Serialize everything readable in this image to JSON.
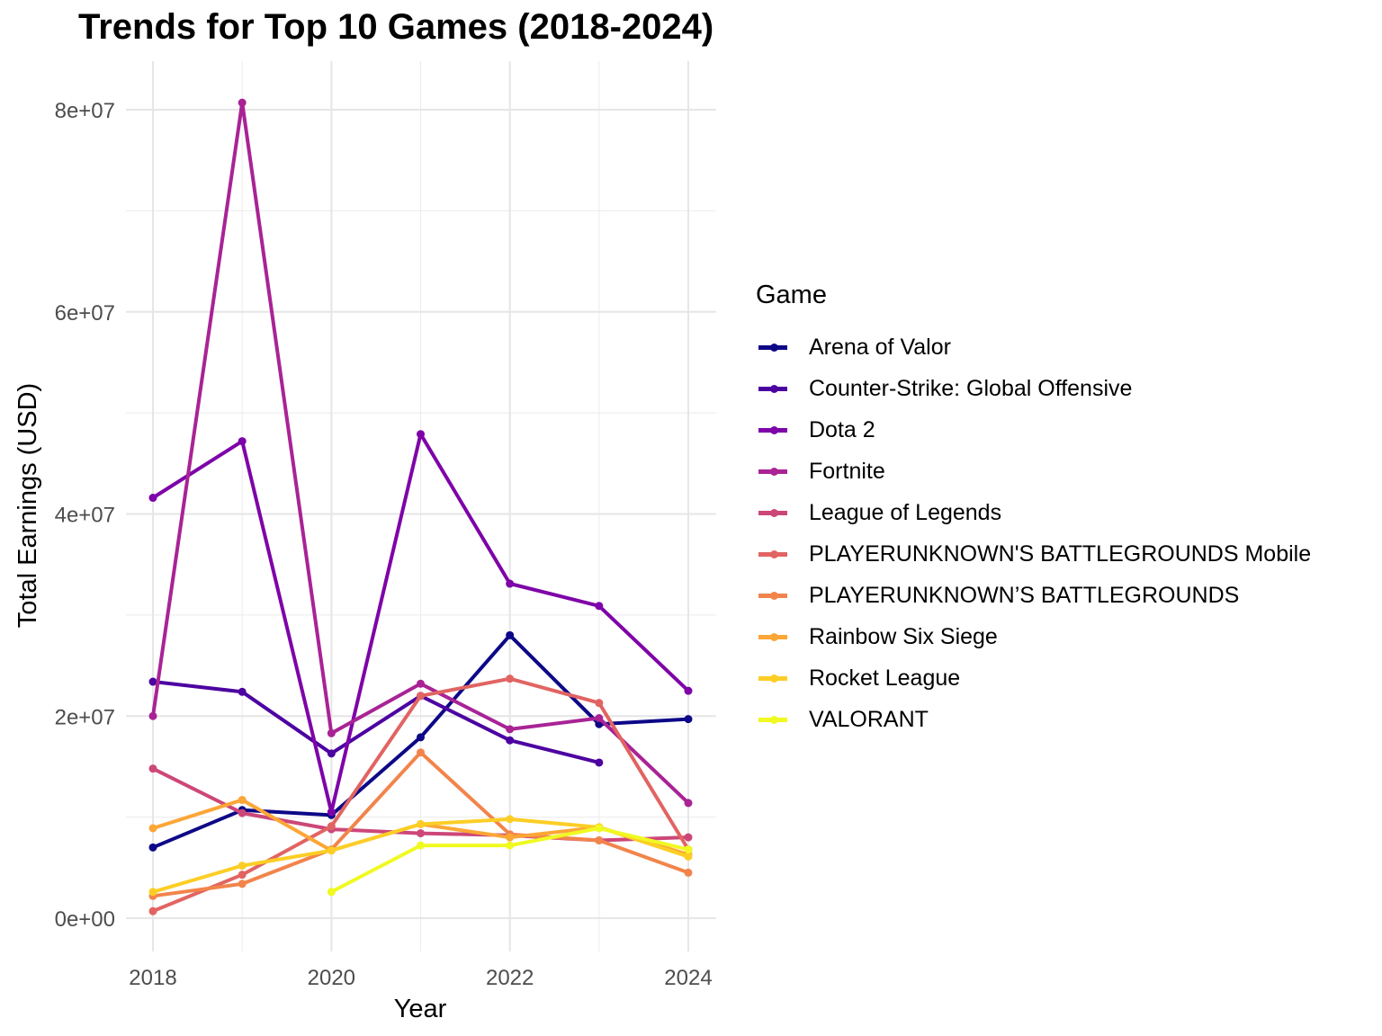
{
  "chart_data": {
    "type": "line",
    "title": "Trends for Top 10 Games (2018-2024)",
    "xlabel": "Year",
    "ylabel": "Total Earnings (USD)",
    "x_ticks": [
      "2018",
      "2020",
      "2022",
      "2024"
    ],
    "x_tick_values": [
      2018,
      2020,
      2022,
      2024
    ],
    "y_ticks": [
      "0e+00",
      "2e+07",
      "4e+07",
      "6e+07",
      "8e+07"
    ],
    "y_tick_values": [
      0,
      20000000,
      40000000,
      60000000,
      80000000
    ],
    "xlim": [
      2017.6,
      2024.3
    ],
    "ylim": [
      -3500000,
      85000000
    ],
    "grid": true,
    "legend_title": "Game",
    "legend_position": "right",
    "series": [
      {
        "name": "Arena of Valor",
        "color": "#0d0887",
        "points": [
          [
            2018,
            7000000
          ],
          [
            2019,
            10700000
          ],
          [
            2020,
            10200000
          ],
          [
            2021,
            17900000
          ],
          [
            2022,
            28000000
          ],
          [
            2023,
            19200000
          ],
          [
            2024,
            19700000
          ]
        ]
      },
      {
        "name": "Counter-Strike: Global Offensive",
        "color": "#4c02a1",
        "points": [
          [
            2018,
            23400000
          ],
          [
            2019,
            22400000
          ],
          [
            2020,
            16300000
          ],
          [
            2021,
            22000000
          ],
          [
            2022,
            17600000
          ],
          [
            2023,
            15400000
          ]
        ]
      },
      {
        "name": "Dota 2",
        "color": "#7e03a8",
        "points": [
          [
            2018,
            41600000
          ],
          [
            2019,
            47200000
          ],
          [
            2020,
            10500000
          ],
          [
            2021,
            47900000
          ],
          [
            2022,
            33100000
          ],
          [
            2023,
            30900000
          ],
          [
            2024,
            22500000
          ]
        ]
      },
      {
        "name": "Fortnite",
        "color": "#a92395",
        "points": [
          [
            2018,
            20000000
          ],
          [
            2019,
            80700000
          ],
          [
            2020,
            18300000
          ],
          [
            2021,
            23200000
          ],
          [
            2022,
            18700000
          ],
          [
            2023,
            19800000
          ],
          [
            2024,
            11400000
          ]
        ]
      },
      {
        "name": "League of Legends",
        "color": "#cc4778",
        "points": [
          [
            2018,
            14800000
          ],
          [
            2019,
            10400000
          ],
          [
            2020,
            8800000
          ],
          [
            2021,
            8400000
          ],
          [
            2022,
            8200000
          ],
          [
            2023,
            7700000
          ],
          [
            2024,
            8000000
          ]
        ]
      },
      {
        "name": "PLAYERUNKNOWN'S BATTLEGROUNDS Mobile",
        "color": "#e16462",
        "points": [
          [
            2018,
            700000
          ],
          [
            2019,
            4300000
          ],
          [
            2020,
            9100000
          ],
          [
            2021,
            22000000
          ],
          [
            2022,
            23700000
          ],
          [
            2023,
            21300000
          ],
          [
            2024,
            6800000
          ]
        ]
      },
      {
        "name": "PLAYERUNKNOWN’S BATTLEGROUNDS",
        "color": "#f2844b",
        "points": [
          [
            2018,
            2200000
          ],
          [
            2019,
            3400000
          ],
          [
            2020,
            6800000
          ],
          [
            2021,
            16400000
          ],
          [
            2022,
            8300000
          ],
          [
            2023,
            7700000
          ],
          [
            2024,
            4500000
          ]
        ]
      },
      {
        "name": "Rainbow Six Siege",
        "color": "#fca636",
        "points": [
          [
            2018,
            8900000
          ],
          [
            2019,
            11700000
          ],
          [
            2020,
            6700000
          ],
          [
            2021,
            9300000
          ],
          [
            2022,
            8000000
          ],
          [
            2023,
            9000000
          ],
          [
            2024,
            6300000
          ]
        ]
      },
      {
        "name": "Rocket League",
        "color": "#fcce25",
        "points": [
          [
            2018,
            2600000
          ],
          [
            2019,
            5200000
          ],
          [
            2020,
            6700000
          ],
          [
            2021,
            9300000
          ],
          [
            2022,
            9800000
          ],
          [
            2023,
            9000000
          ],
          [
            2024,
            6100000
          ]
        ]
      },
      {
        "name": "VALORANT",
        "color": "#f0f921",
        "points": [
          [
            2020,
            2600000
          ],
          [
            2021,
            7200000
          ],
          [
            2022,
            7200000
          ],
          [
            2023,
            8900000
          ],
          [
            2024,
            6800000
          ]
        ]
      }
    ]
  }
}
